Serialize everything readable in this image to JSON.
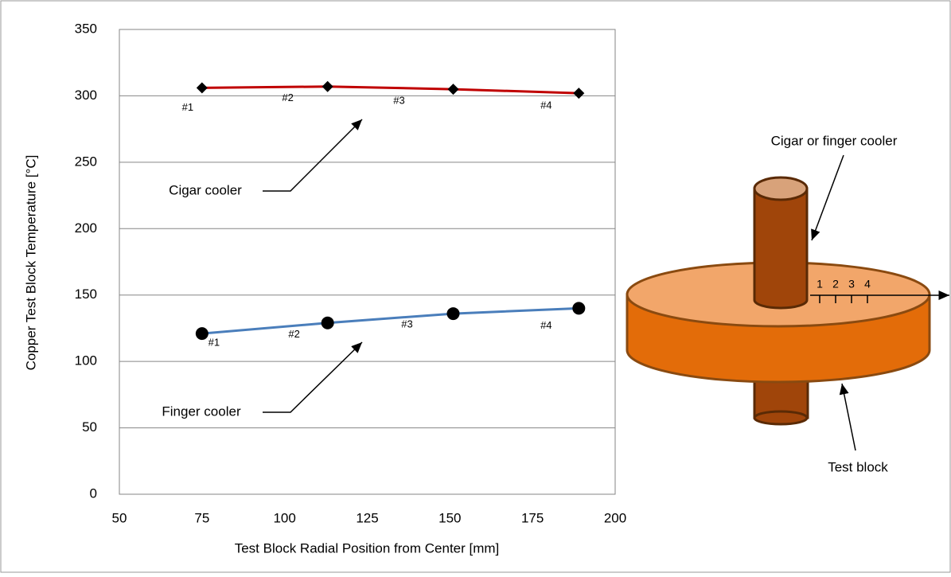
{
  "chart_data": {
    "type": "line",
    "x_label": "Test Block Radial Position from Center [mm]",
    "y_label": "Copper Test Block Temperature [°C]",
    "xlim": [
      50,
      200
    ],
    "xticks": [
      50,
      75,
      100,
      125,
      150,
      175,
      200
    ],
    "ylim": [
      0,
      350
    ],
    "yticks": [
      0,
      50,
      100,
      150,
      200,
      250,
      300,
      350
    ],
    "grid": true,
    "series": [
      {
        "name": "Cigar cooler",
        "color": "#c00000",
        "marker": "diamond",
        "x": [
          75,
          113,
          151,
          189
        ],
        "values": [
          306,
          307,
          305,
          302
        ],
        "point_labels": [
          "#1",
          "#2",
          "#3",
          "#4"
        ]
      },
      {
        "name": "Finger cooler",
        "color": "#4a7ebb",
        "marker": "circle",
        "x": [
          75,
          113,
          151,
          189
        ],
        "values": [
          121,
          129,
          136,
          140
        ],
        "point_labels": [
          "#1",
          "#2",
          "#3",
          "#4"
        ]
      }
    ]
  },
  "diagram": {
    "cooler_label": "Cigar or finger cooler",
    "block_label": "Test block",
    "scale_marks": [
      "1",
      "2",
      "3",
      "4"
    ]
  }
}
